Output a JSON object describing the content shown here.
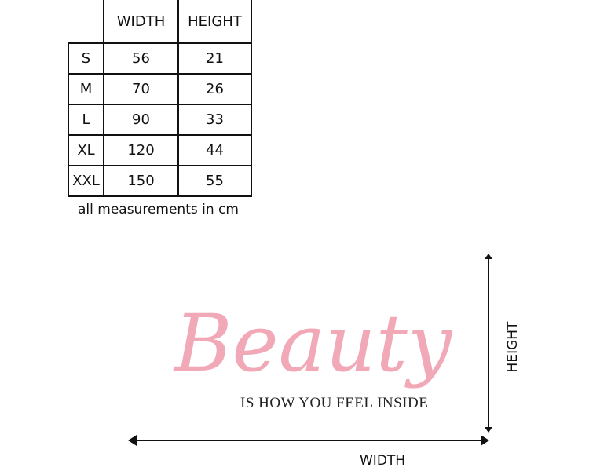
{
  "table": {
    "headers": [
      "",
      "WIDTH",
      "HEIGHT"
    ],
    "rows": [
      {
        "size": "S",
        "width": "56",
        "height": "21"
      },
      {
        "size": "M",
        "width": "70",
        "height": "26"
      },
      {
        "size": "L",
        "width": "90",
        "height": "33"
      },
      {
        "size": "XL",
        "width": "120",
        "height": "44"
      },
      {
        "size": "XXL",
        "width": "150",
        "height": "55"
      }
    ],
    "caption": "all measurements in cm"
  },
  "decal": {
    "title": "Beauty",
    "subtitle": "IS HOW YOU FEEL INSIDE",
    "title_color": "#f2a9b7"
  },
  "dimensions": {
    "width_label": "WIDTH",
    "height_label": "HEIGHT"
  }
}
